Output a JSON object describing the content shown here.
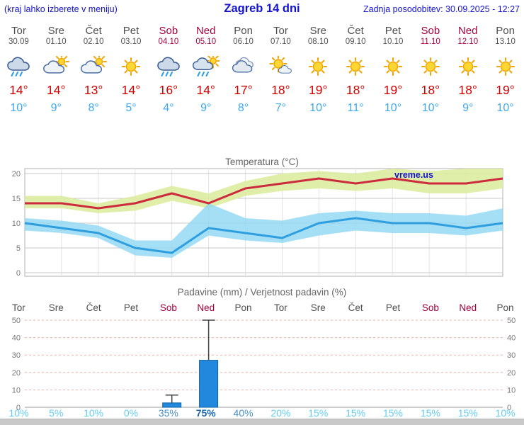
{
  "header": {
    "left_note": "(kraj lahko izberete v meniju)",
    "title": "Zagreb 14 dni",
    "updated": "Zadnja posodobitev: 30.09.2025 - 12:27"
  },
  "watermark": "vreme.us",
  "days": [
    {
      "name": "Tor",
      "date": "30.09",
      "icon": "rain",
      "high": 14,
      "low": 10,
      "weekend": false
    },
    {
      "name": "Sre",
      "date": "01.10",
      "icon": "partly",
      "high": 14,
      "low": 9,
      "weekend": false
    },
    {
      "name": "Čet",
      "date": "02.10",
      "icon": "partly",
      "high": 13,
      "low": 8,
      "weekend": false
    },
    {
      "name": "Pet",
      "date": "03.10",
      "icon": "sun",
      "high": 14,
      "low": 5,
      "weekend": false
    },
    {
      "name": "Sob",
      "date": "04.10",
      "icon": "rain",
      "high": 16,
      "low": 4,
      "weekend": true
    },
    {
      "name": "Ned",
      "date": "05.10",
      "icon": "rain-sun",
      "high": 14,
      "low": 9,
      "weekend": true
    },
    {
      "name": "Pon",
      "date": "06.10",
      "icon": "cloudy",
      "high": 17,
      "low": 8,
      "weekend": false
    },
    {
      "name": "Tor",
      "date": "07.10",
      "icon": "mostly-sunny",
      "high": 18,
      "low": 7,
      "weekend": false
    },
    {
      "name": "Sre",
      "date": "08.10",
      "icon": "sun",
      "high": 19,
      "low": 10,
      "weekend": false
    },
    {
      "name": "Čet",
      "date": "09.10",
      "icon": "sun",
      "high": 18,
      "low": 11,
      "weekend": false
    },
    {
      "name": "Pet",
      "date": "10.10",
      "icon": "sun",
      "high": 19,
      "low": 10,
      "weekend": false
    },
    {
      "name": "Sob",
      "date": "11.10",
      "icon": "sun",
      "high": 18,
      "low": 10,
      "weekend": true
    },
    {
      "name": "Ned",
      "date": "12.10",
      "icon": "sun",
      "high": 18,
      "low": 9,
      "weekend": true
    },
    {
      "name": "Pon",
      "date": "13.10",
      "icon": "sun",
      "high": 19,
      "low": 10,
      "weekend": false
    }
  ],
  "chart_data": [
    {
      "type": "line",
      "title": "Temperatura (°C)",
      "categories": [
        "Tor 30.09",
        "Sre 01.10",
        "Čet 02.10",
        "Pet 03.10",
        "Sob 04.10",
        "Ned 05.10",
        "Pon 06.10",
        "Tor 07.10",
        "Sre 08.10",
        "Čet 09.10",
        "Pet 10.10",
        "Sob 11.10",
        "Ned 12.10",
        "Pon 13.10"
      ],
      "series": [
        {
          "name": "max",
          "values": [
            14,
            14,
            13,
            14,
            16,
            14,
            17,
            18,
            19,
            18,
            19,
            18,
            18,
            19
          ],
          "color": "#cc2b3d"
        },
        {
          "name": "max_range_upper",
          "values": [
            15.5,
            15.5,
            14,
            15.5,
            17.5,
            16,
            18.5,
            20,
            20.5,
            20,
            21,
            20.5,
            21,
            22.5
          ]
        },
        {
          "name": "max_range_lower",
          "values": [
            13,
            13,
            12,
            12.5,
            14.5,
            13,
            15.5,
            16.5,
            17,
            16.5,
            17,
            16,
            16,
            17
          ]
        },
        {
          "name": "min",
          "values": [
            10,
            9,
            8,
            5,
            4,
            9,
            8,
            7,
            10,
            11,
            10,
            10,
            9,
            10
          ],
          "color": "#2f9ede"
        },
        {
          "name": "min_range_upper",
          "values": [
            11,
            10.5,
            9.5,
            6.5,
            6.5,
            14,
            11,
            10.5,
            12,
            12.5,
            12,
            12,
            11.5,
            13
          ]
        },
        {
          "name": "min_range_lower",
          "values": [
            8.5,
            8,
            7,
            3.5,
            3,
            7.5,
            6.5,
            6,
            7.5,
            8.5,
            8,
            8,
            7.5,
            8.5
          ]
        }
      ],
      "yticks": [
        0,
        5,
        10,
        15,
        20
      ],
      "ylim": [
        -0.8,
        21
      ],
      "band_colors": {
        "max": "#dcec9e",
        "min": "#8ed7f2"
      },
      "grid": true,
      "legend": "none"
    },
    {
      "type": "bar",
      "title": "Padavine (mm) / Verjetnost padavin (%)",
      "categories": [
        "Tor",
        "Sre",
        "Čet",
        "Pet",
        "Sob",
        "Ned",
        "Pon",
        "Tor",
        "Sre",
        "Čet",
        "Pet",
        "Sob",
        "Ned",
        "Pon"
      ],
      "values": [
        0,
        0,
        0,
        0,
        2.5,
        27,
        0,
        0,
        0,
        0,
        0,
        0,
        0,
        0
      ],
      "whisker_max": [
        0,
        0,
        0,
        0,
        7,
        50,
        0,
        0,
        0,
        0,
        0,
        0,
        0,
        0
      ],
      "probabilities_pct": [
        10,
        5,
        10,
        0,
        35,
        75,
        40,
        20,
        15,
        15,
        15,
        15,
        15,
        10
      ],
      "yticks": [
        0,
        10,
        20,
        30,
        40,
        50
      ],
      "ylim": [
        0,
        52
      ],
      "bar_color": "#2288dd",
      "grid": true,
      "legend": "none"
    }
  ],
  "colors": {
    "header_text": "#1313cf",
    "weekend": "#a3003c",
    "weekday": "#4f4f4f",
    "high_temp": "#d40000",
    "low_temp": "#3da8f0",
    "prob_low": "#63cdf0",
    "prob_mid": "#4a90c4",
    "prob_high": "#1565b0",
    "grid": "#c8c8c8",
    "precip_grid": "#f0b0a8",
    "axis_text": "#777777"
  }
}
